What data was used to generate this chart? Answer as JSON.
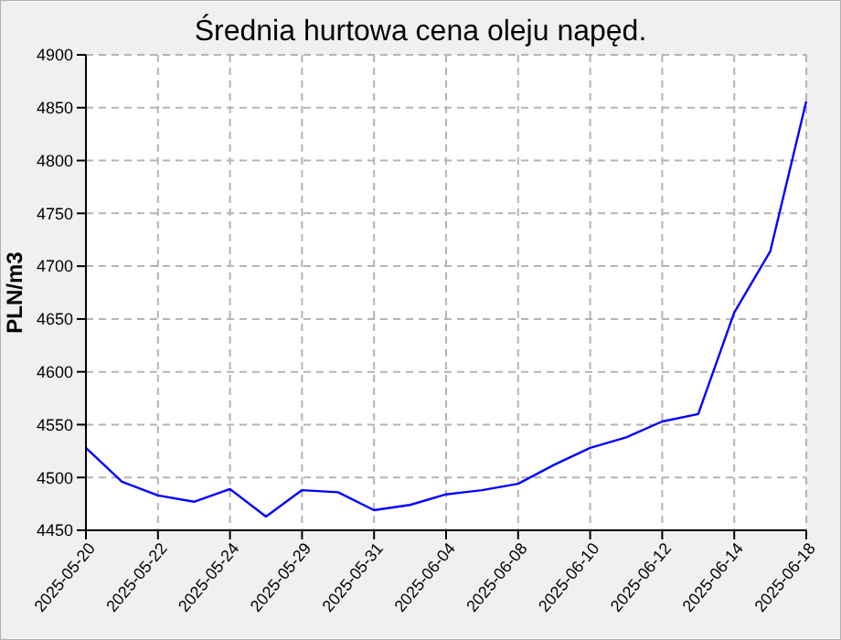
{
  "chart_data": {
    "type": "line",
    "title": "Średnia hurtowa cena oleju napęd.",
    "ylabel": "PLN/m3",
    "categories": [
      "2025-05-20",
      null,
      "2025-05-22",
      null,
      "2025-05-24",
      null,
      "2025-05-29",
      null,
      "2025-05-31",
      null,
      "2025-06-04",
      null,
      "2025-06-08",
      null,
      "2025-06-10",
      null,
      "2025-06-12",
      null,
      "2025-06-14",
      null,
      "2025-06-18"
    ],
    "series": [
      {
        "color": "#0000ff",
        "values": [
          4528,
          4496,
          4483,
          4477,
          4489,
          4463,
          4488,
          4486,
          4469,
          4474,
          4484,
          4488,
          4494,
          4512,
          4528,
          4538,
          4553,
          4560,
          4656,
          4714,
          4856
        ]
      }
    ],
    "ylim": [
      4450,
      4900
    ],
    "yticks": [
      4450,
      4500,
      4550,
      4600,
      4650,
      4700,
      4750,
      4800,
      4850,
      4900
    ],
    "grid": true,
    "marker": "none",
    "line_style": "solid"
  }
}
